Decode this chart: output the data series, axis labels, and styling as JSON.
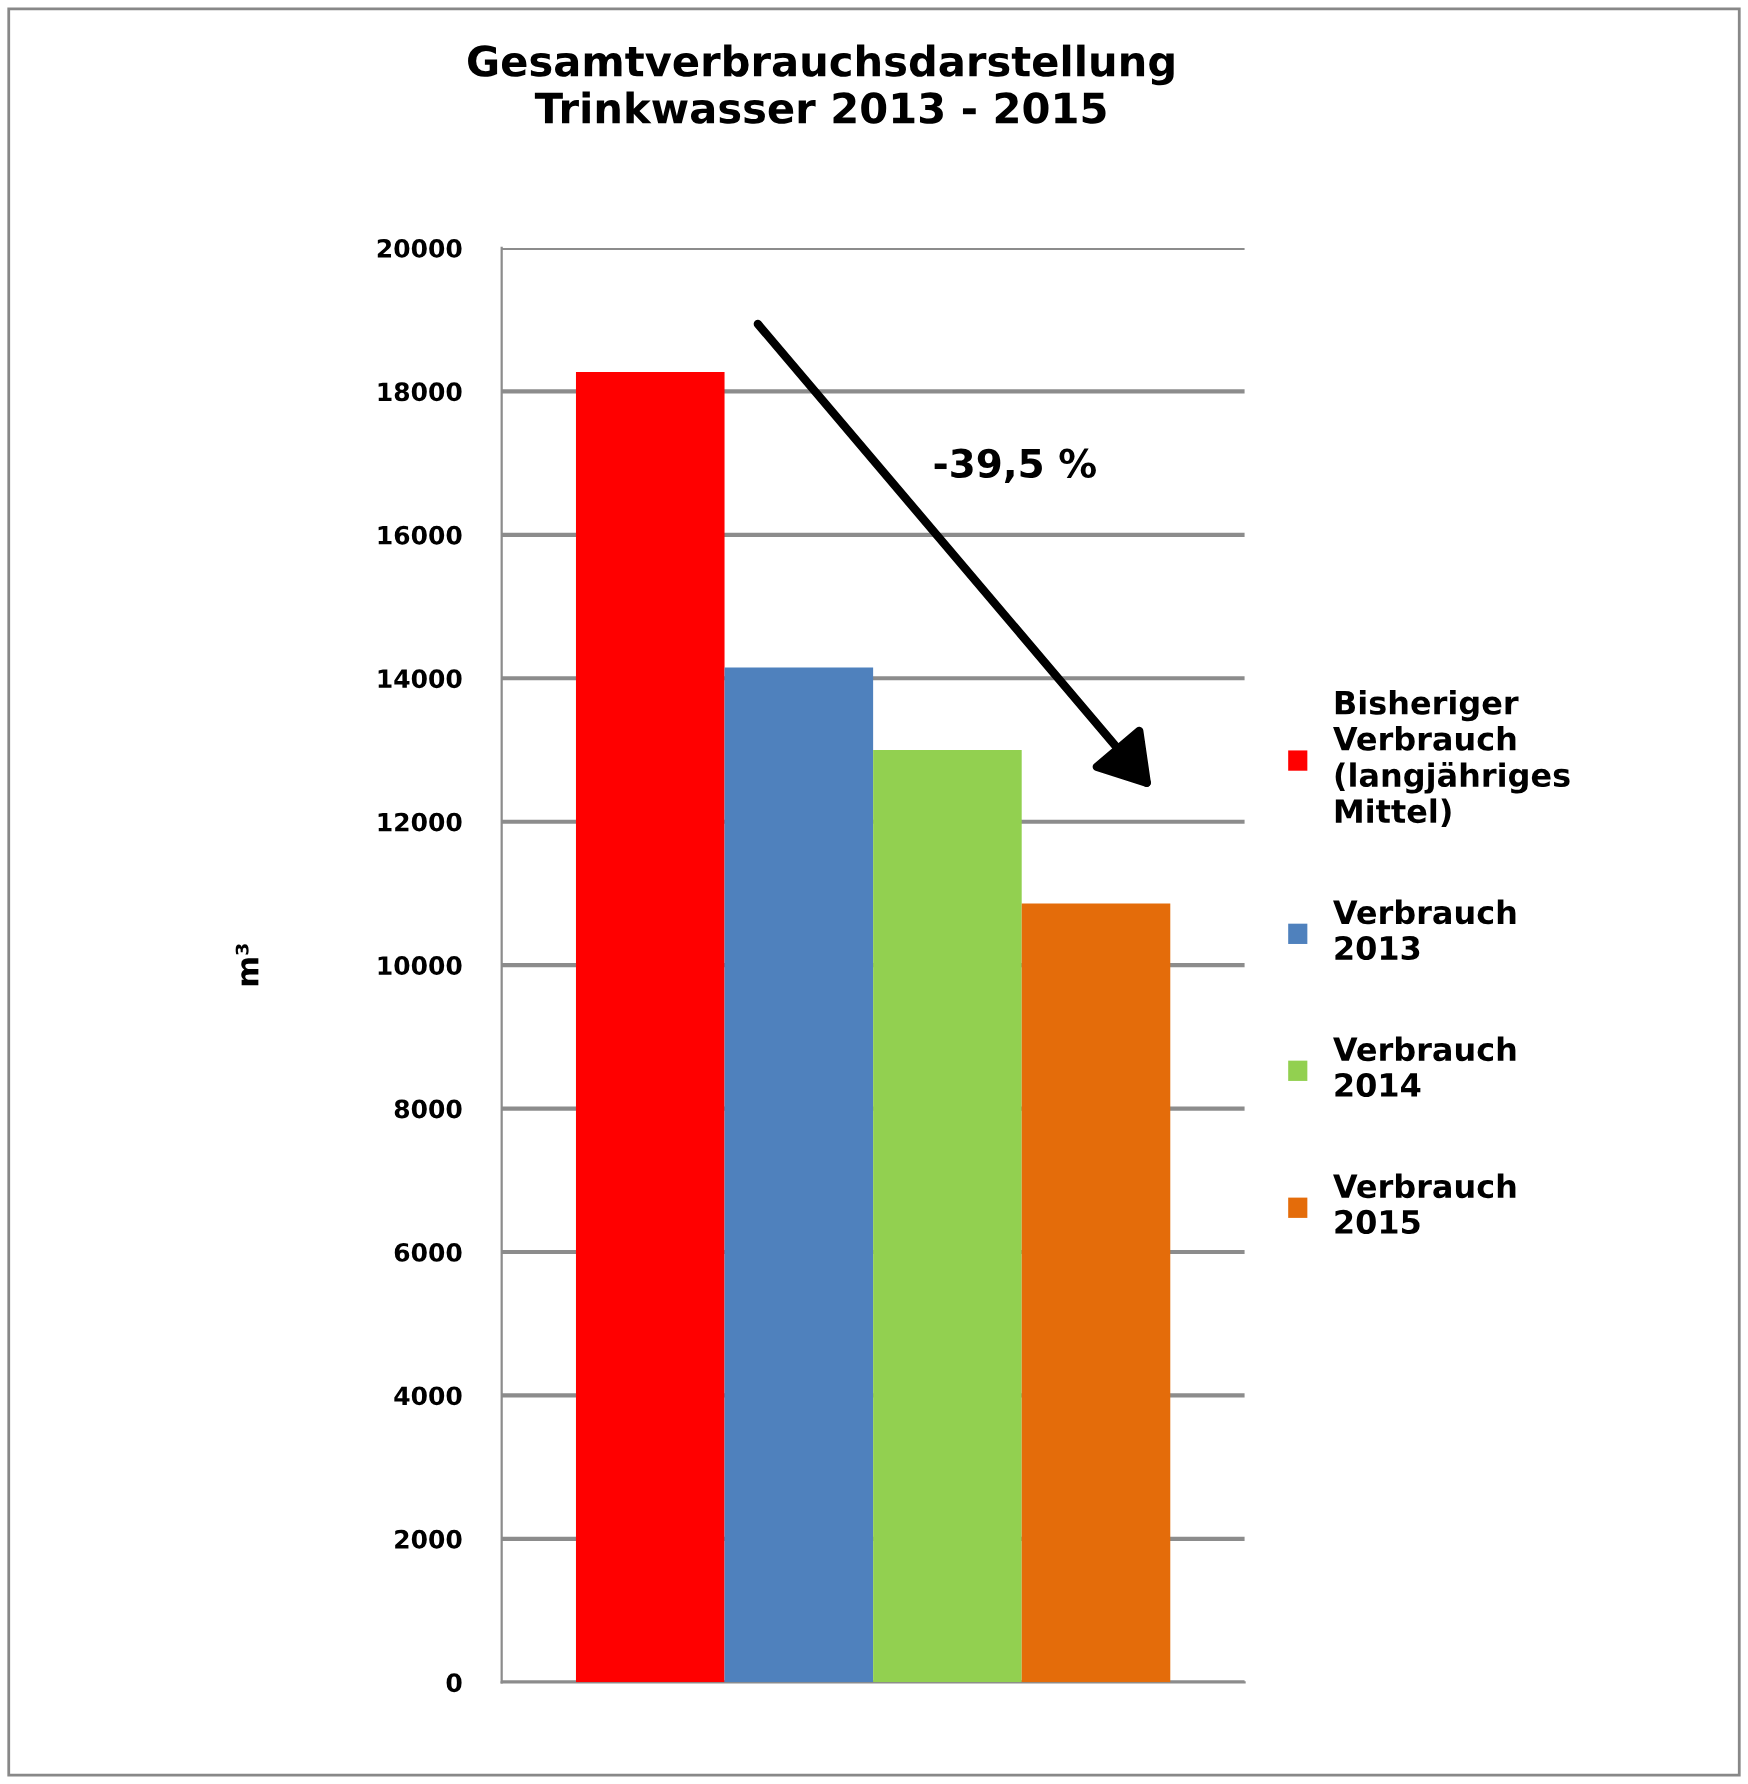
{
  "chart_data": {
    "type": "bar",
    "title": "Gesamtverbrauchsdarstellung\nTrinkwasser 2013 - 2015",
    "ylabel": "m³",
    "categories": [
      null
    ],
    "series": [
      {
        "name": "Bisheriger\nVerbrauch\n(langjähriges\nMittel)",
        "color": "#ff0000",
        "values": [
          18270
        ]
      },
      {
        "name": "Verbrauch\n2013",
        "color": "#4f81bd",
        "values": [
          14150
        ]
      },
      {
        "name": "Verbrauch\n2014",
        "color": "#92d050",
        "values": [
          13000
        ]
      },
      {
        "name": "Verbrauch\n2015",
        "color": "#e46c0a",
        "values": [
          10860
        ]
      }
    ],
    "ylim": [
      0,
      20000
    ],
    "yticks": [
      0,
      2000,
      4000,
      6000,
      8000,
      10000,
      12000,
      14000,
      16000,
      18000,
      20000
    ],
    "grid": "y",
    "legend": "right",
    "tick_labels": "y",
    "annotations": [
      "-39,5 %"
    ]
  }
}
